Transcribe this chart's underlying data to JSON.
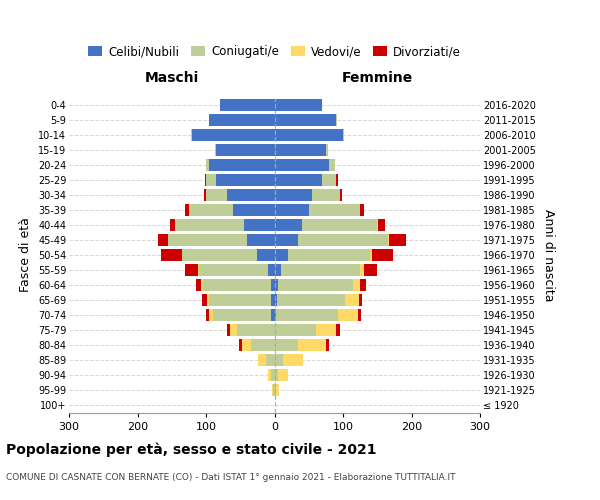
{
  "age_groups": [
    "100+",
    "95-99",
    "90-94",
    "85-89",
    "80-84",
    "75-79",
    "70-74",
    "65-69",
    "60-64",
    "55-59",
    "50-54",
    "45-49",
    "40-44",
    "35-39",
    "30-34",
    "25-29",
    "20-24",
    "15-19",
    "10-14",
    "5-9",
    "0-4"
  ],
  "birth_years": [
    "≤ 1920",
    "1921-1925",
    "1926-1930",
    "1931-1935",
    "1936-1940",
    "1941-1945",
    "1946-1950",
    "1951-1955",
    "1956-1960",
    "1961-1965",
    "1966-1970",
    "1971-1975",
    "1976-1980",
    "1981-1985",
    "1986-1990",
    "1991-1995",
    "1996-2000",
    "2001-2005",
    "2006-2010",
    "2011-2015",
    "2016-2020"
  ],
  "maschi_celibi": [
    0,
    0,
    0,
    0,
    0,
    0,
    5,
    5,
    5,
    10,
    25,
    40,
    45,
    60,
    70,
    85,
    95,
    85,
    120,
    95,
    80
  ],
  "maschi_coniugati": [
    0,
    2,
    5,
    12,
    35,
    55,
    85,
    90,
    100,
    100,
    110,
    115,
    100,
    65,
    30,
    15,
    5,
    2,
    2,
    1,
    0
  ],
  "maschi_vedovi": [
    0,
    2,
    5,
    12,
    12,
    10,
    5,
    3,
    2,
    1,
    0,
    0,
    0,
    0,
    0,
    0,
    0,
    0,
    0,
    0,
    0
  ],
  "maschi_divorziati": [
    0,
    0,
    0,
    0,
    5,
    5,
    5,
    8,
    8,
    20,
    30,
    15,
    8,
    5,
    3,
    2,
    0,
    0,
    0,
    0,
    0
  ],
  "femmine_nubili": [
    0,
    0,
    0,
    0,
    0,
    0,
    2,
    3,
    5,
    10,
    20,
    35,
    40,
    50,
    55,
    70,
    80,
    75,
    100,
    90,
    70
  ],
  "femmine_coniugate": [
    0,
    2,
    5,
    12,
    35,
    60,
    90,
    100,
    110,
    115,
    120,
    130,
    110,
    75,
    40,
    20,
    8,
    3,
    2,
    1,
    0
  ],
  "femmine_vedove": [
    0,
    5,
    15,
    30,
    40,
    30,
    30,
    20,
    10,
    5,
    3,
    2,
    1,
    0,
    0,
    0,
    0,
    0,
    0,
    0,
    0
  ],
  "femmine_divorziate": [
    0,
    0,
    0,
    0,
    5,
    5,
    5,
    5,
    8,
    20,
    30,
    25,
    10,
    5,
    3,
    2,
    0,
    0,
    0,
    0,
    0
  ],
  "colors": {
    "celibi": "#4472C4",
    "coniugati": "#BFCE99",
    "vedovi": "#FFD965",
    "divorziati": "#CC0000"
  },
  "xlim": 300,
  "title": "Popolazione per età, sesso e stato civile - 2021",
  "subtitle": "COMUNE DI CASNATE CON BERNATE (CO) - Dati ISTAT 1° gennaio 2021 - Elaborazione TUTTITALIA.IT",
  "ylabel_left": "Fasce di età",
  "ylabel_right": "Anni di nascita",
  "header_left": "Maschi",
  "header_right": "Femmine",
  "legend_labels": [
    "Celibi/Nubili",
    "Coniugati/e",
    "Vedovi/e",
    "Divorziati/e"
  ]
}
